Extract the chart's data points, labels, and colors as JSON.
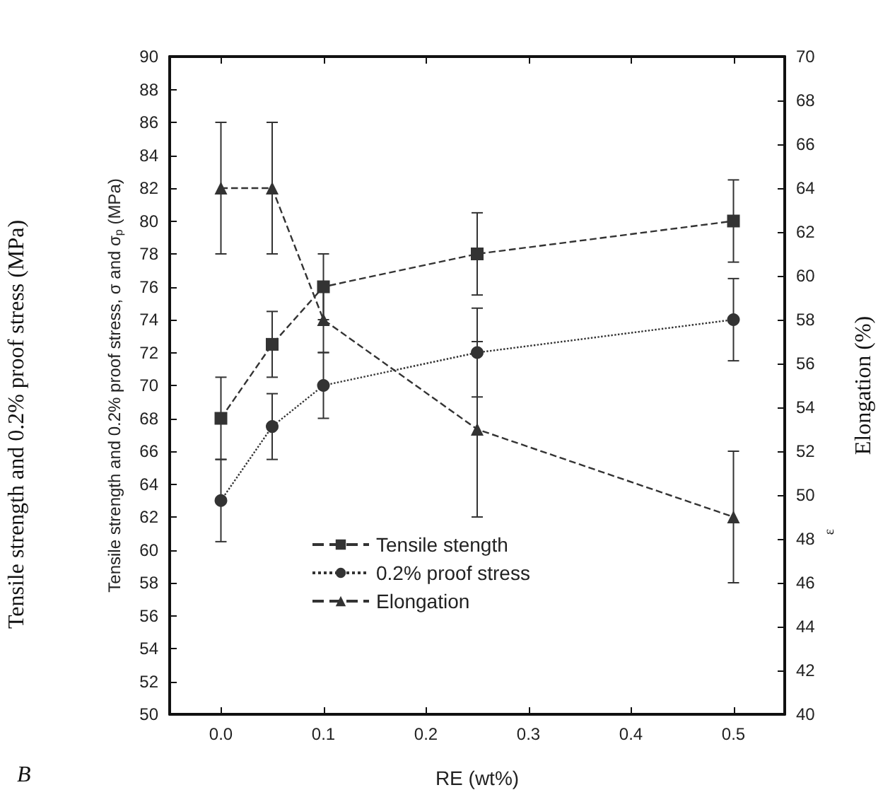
{
  "chart_data": {
    "type": "line",
    "xlabel": "RE (wt%)",
    "ylabel": "Tensile strength and 0.2% proof stress, σ and σ$_{p}$ (MPa)",
    "y2label": "Elongation (%)",
    "annotations": [
      "Tensile strength and 0.2% proof stress (MPa)",
      "ε",
      "B"
    ],
    "x": [
      0,
      0.05,
      0.1,
      0.25,
      0.5
    ],
    "xlim": [
      -0.05,
      0.55
    ],
    "xticks": [
      {
        "value": 0,
        "label": "0.0"
      },
      0.1,
      0.2,
      0.3,
      0.4,
      0.5
    ],
    "ylim": [
      50,
      90
    ],
    "yticks": [
      50,
      52,
      54,
      56,
      58,
      60,
      62,
      64,
      66,
      68,
      70,
      72,
      74,
      76,
      78,
      80,
      82,
      84,
      86,
      88,
      90
    ],
    "y2lim": [
      40,
      70
    ],
    "y2ticks": [
      40,
      42,
      44,
      46,
      48,
      50,
      52,
      54,
      56,
      58,
      60,
      62,
      64,
      66,
      68,
      70
    ],
    "legend": "bottom left",
    "grid": false,
    "series": [
      {
        "name": "Tensile stength",
        "color": "#333333",
        "marker": "square",
        "line_style": "dashed",
        "values": [
          68,
          72.5,
          76,
          78,
          80
        ],
        "errors": [
          2.5,
          2,
          2,
          2.5,
          2.5
        ]
      },
      {
        "name": "0.2% proof stress",
        "color": "#333333",
        "marker": "circle",
        "line_style": "dotted",
        "values": [
          63,
          67.5,
          70,
          72,
          74
        ],
        "errors": [
          2.5,
          2,
          2,
          2.7,
          2.5
        ]
      },
      {
        "name": "Elongation",
        "color": "#333333",
        "marker": "triangle",
        "line_style": "dashed",
        "axis": "y2",
        "values": [
          64,
          64,
          58,
          53,
          49
        ],
        "errors": [
          3,
          3,
          1.5,
          4,
          3
        ]
      }
    ]
  }
}
